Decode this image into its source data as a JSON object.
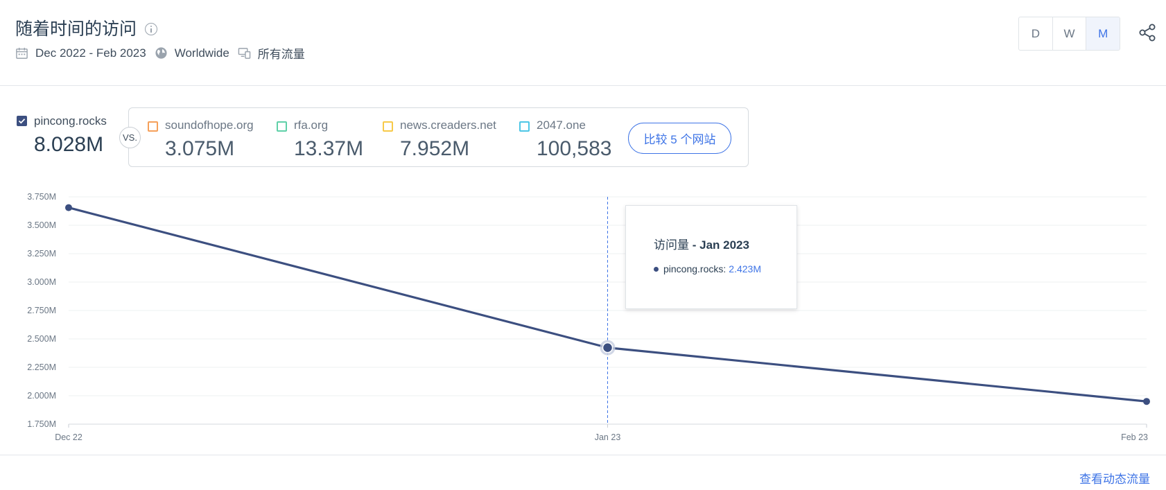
{
  "header": {
    "title": "随着时间的访问",
    "date_range": "Dec 2022 - Feb 2023",
    "region": "Worldwide",
    "traffic_type": "所有流量",
    "granularity": [
      {
        "label": "D",
        "active": false
      },
      {
        "label": "W",
        "active": false
      },
      {
        "label": "M",
        "active": true
      }
    ]
  },
  "primary_site": {
    "name": "pincong.rocks",
    "value": "8.028M",
    "checked": true,
    "color": "#3c4f80"
  },
  "vs_label": "VS.",
  "competitors": [
    {
      "name": "soundofhope.org",
      "value": "3.075M",
      "color": "#f5a05a"
    },
    {
      "name": "rfa.org",
      "value": "13.37M",
      "color": "#5fd0a8"
    },
    {
      "name": "news.creaders.net",
      "value": "7.952M",
      "color": "#f7c948"
    },
    {
      "name": "2047.one",
      "value": "100,583",
      "color": "#4dc6e6"
    }
  ],
  "compare_button": "比较 5 个网站",
  "tooltip": {
    "metric": "访问量",
    "separator": " - ",
    "period": "Jan 2023",
    "site": "pincong.rocks:",
    "value": "2.423M"
  },
  "footer_link": "查看动态流量",
  "chart_data": {
    "type": "line",
    "x": [
      "Dec 22",
      "Jan 23",
      "Feb 23"
    ],
    "series": [
      {
        "name": "pincong.rocks",
        "values": [
          3.655,
          2.423,
          1.95
        ],
        "color": "#3c4f80"
      }
    ],
    "ylim": [
      1.75,
      3.75
    ],
    "yticks": [
      1.75,
      2.0,
      2.25,
      2.5,
      2.75,
      3.0,
      3.25,
      3.5,
      3.75
    ],
    "ytick_labels": [
      "1.750M",
      "2.000M",
      "2.250M",
      "2.500M",
      "2.750M",
      "3.000M",
      "3.250M",
      "3.500M",
      "3.750M"
    ],
    "highlight_index": 1,
    "grid": true
  }
}
